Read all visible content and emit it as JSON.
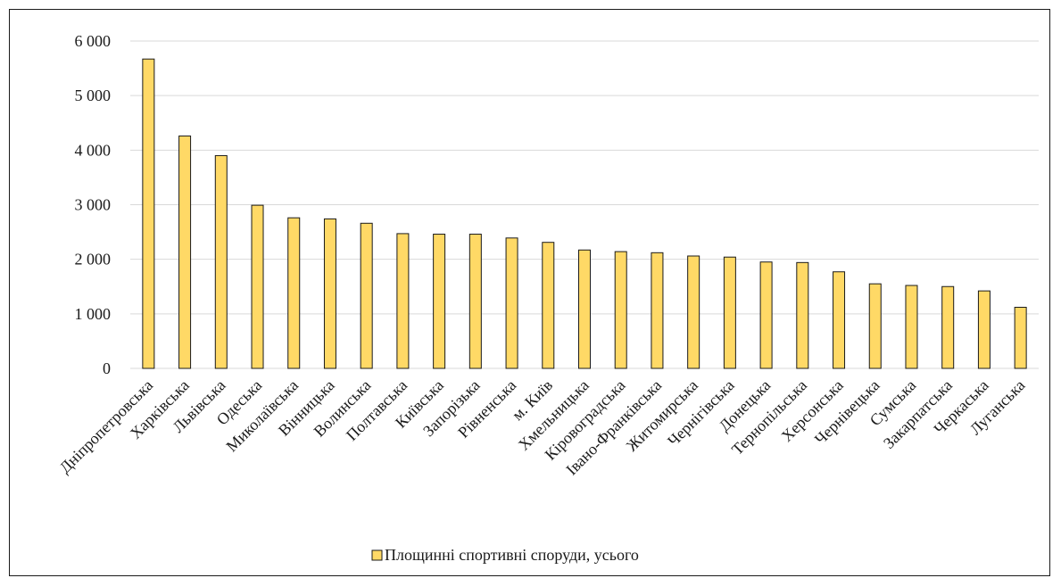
{
  "chart_data": {
    "type": "bar",
    "categories": [
      "Дніпропетровська",
      "Харківська",
      "Львівська",
      "Одеська",
      "Миколаївська",
      "Вінницька",
      "Волинська",
      "Полтавська",
      "Київська",
      "Запорізька",
      "Рівненська",
      "м. Київ",
      "Хмельницька",
      "Кіровоградська",
      "Івано-Франківська",
      "Житомирська",
      "Чернігівська",
      "Донецька",
      "Тернопільська",
      "Херсонська",
      "Чернівецька",
      "Сумська",
      "Закарпатська",
      "Черкаська",
      "Луганська"
    ],
    "series": [
      {
        "name": "Площинні спортивні споруди, усього",
        "values": [
          5670,
          4260,
          3900,
          2990,
          2760,
          2740,
          2660,
          2470,
          2460,
          2460,
          2390,
          2310,
          2170,
          2140,
          2120,
          2060,
          2040,
          1950,
          1940,
          1770,
          1550,
          1520,
          1500,
          1420,
          1120
        ]
      }
    ],
    "yticks": [
      "0",
      "1 000",
      "2 000",
      "3 000",
      "4 000",
      "5 000",
      "6 000"
    ],
    "ylim": [
      0,
      6000
    ],
    "grid": true,
    "legend_position": "bottom",
    "colors": {
      "bar_fill": "#FFD966",
      "bar_stroke": "#1a1a1a",
      "grid": "#d9d9d9"
    }
  }
}
